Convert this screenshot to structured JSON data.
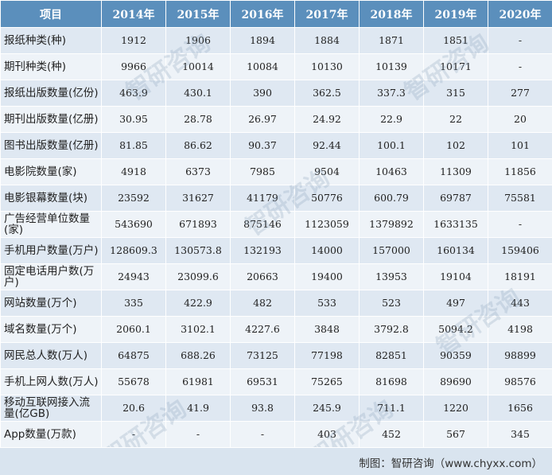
{
  "header": [
    "项目",
    "2014年",
    "2015年",
    "2016年",
    "2017年",
    "2018年",
    "2019年",
    "2020年"
  ],
  "rows": [
    {
      "label": "报纸种类(种)",
      "values": [
        "1912",
        "1906",
        "1894",
        "1884",
        "1871",
        "1851",
        "-"
      ]
    },
    {
      "label": "期刊种类(种)",
      "values": [
        "9966",
        "10014",
        "10084",
        "10130",
        "10139",
        "10171",
        "-"
      ]
    },
    {
      "label": "报纸出版数量(亿份)",
      "values": [
        "463.9",
        "430.1",
        "390",
        "362.5",
        "337.3",
        "315",
        "277"
      ]
    },
    {
      "label": "期刊出版数量(亿册)",
      "values": [
        "30.95",
        "28.78",
        "26.97",
        "24.92",
        "22.9",
        "22",
        "20"
      ]
    },
    {
      "label": "图书出版数量(亿册)",
      "values": [
        "81.85",
        "86.62",
        "90.37",
        "92.44",
        "100.1",
        "102",
        "101"
      ]
    },
    {
      "label": "电影院数量(家)",
      "values": [
        "4918",
        "6373",
        "7985",
        "9504",
        "10463",
        "11309",
        "11856"
      ]
    },
    {
      "label": "电影银幕数量(块)",
      "values": [
        "23592",
        "31627",
        "41179",
        "50776",
        "600.79",
        "69787",
        "75581"
      ]
    },
    {
      "label": "广告经营单位数量(家)",
      "values": [
        "543690",
        "671893",
        "875146",
        "1123059",
        "1379892",
        "1633135",
        "-"
      ]
    },
    {
      "label": "手机用户数量(万户)",
      "values": [
        "128609.3",
        "130573.8",
        "132193",
        "14000",
        "157000",
        "160134",
        "159406"
      ]
    },
    {
      "label": "固定电话用户数(万户)",
      "values": [
        "24943",
        "23099.6",
        "20663",
        "19400",
        "13953",
        "19104",
        "18191"
      ]
    },
    {
      "label": "网站数量(万个)",
      "values": [
        "335",
        "422.9",
        "482",
        "533",
        "523",
        "497",
        "443"
      ]
    },
    {
      "label": "域名数量(万个)",
      "values": [
        "2060.1",
        "3102.1",
        "4227.6",
        "3848",
        "3792.8",
        "5094.2",
        "4198"
      ]
    },
    {
      "label": "网民总人数(万人)",
      "values": [
        "64875",
        "688.26",
        "73125",
        "77198",
        "82851",
        "90359",
        "98899"
      ]
    },
    {
      "label": "手机上网人数(万人)",
      "values": [
        "55678",
        "61981",
        "69531",
        "75265",
        "81698",
        "89690",
        "98576"
      ]
    },
    {
      "label": "移动互联网接入流量(亿GB)",
      "values": [
        "20.6",
        "41.9",
        "93.8",
        "245.9",
        "711.1",
        "1220",
        "1656"
      ]
    },
    {
      "label": "App数量(万款)",
      "values": [
        "-",
        "-",
        "-",
        "403",
        "452",
        "567",
        "345"
      ]
    }
  ],
  "footer": {
    "source": "制图：智研咨询（www.chyxx.com）"
  },
  "watermark": {
    "brand": "智研咨询",
    "url": "www.chyxx.com"
  },
  "colors": {
    "header_bg": "#5b8fbc",
    "row_odd": "#dfe8f2",
    "row_even": "#eef3f8",
    "footer_bg": "#d9e4ef"
  }
}
